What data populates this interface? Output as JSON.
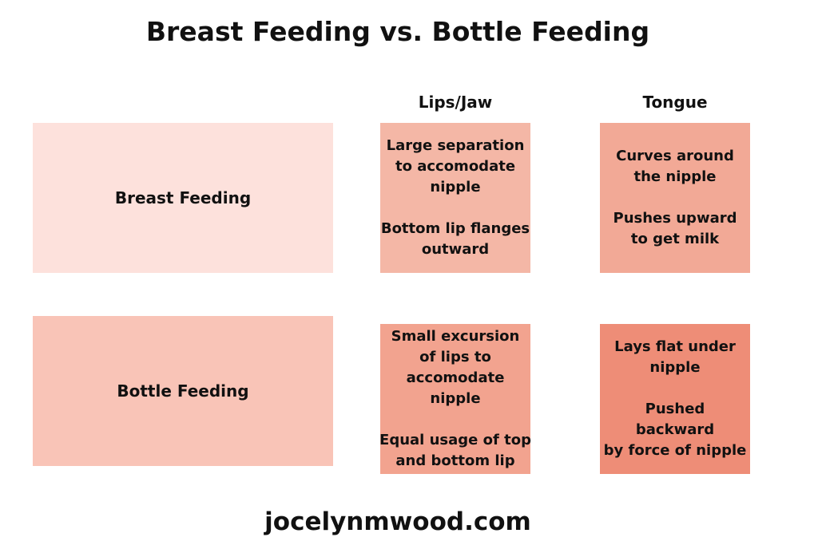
{
  "title": "Breast Feeding vs. Bottle Feeding",
  "columns": {
    "lips_jaw": "Lips/Jaw",
    "tongue": "Tongue"
  },
  "rows": [
    {
      "label": "Breast Feeding",
      "label_color": "#FDE1DC",
      "lips_jaw": [
        "Large separation",
        "to accomodate",
        "nipple",
        "",
        "Bottom lip flanges",
        "outward"
      ],
      "lips_jaw_color": "#F4B7A6",
      "tongue": [
        "Curves around",
        "the nipple",
        "",
        "Pushes upward",
        "to get milk"
      ],
      "tongue_color": "#F2A996"
    },
    {
      "label": "Bottle Feeding",
      "label_color": "#F9C4B7",
      "lips_jaw": [
        "Small excursion",
        "of lips to",
        "accomodate",
        "nipple",
        "",
        "Equal usage of top",
        "and bottom lip"
      ],
      "lips_jaw_color": "#F2A38F",
      "tongue": [
        "Lays flat under",
        "nipple",
        "",
        "Pushed",
        "backward",
        "by force of nipple"
      ],
      "tongue_color": "#EE8D77"
    }
  ],
  "footer": "jocelynmwood.com"
}
